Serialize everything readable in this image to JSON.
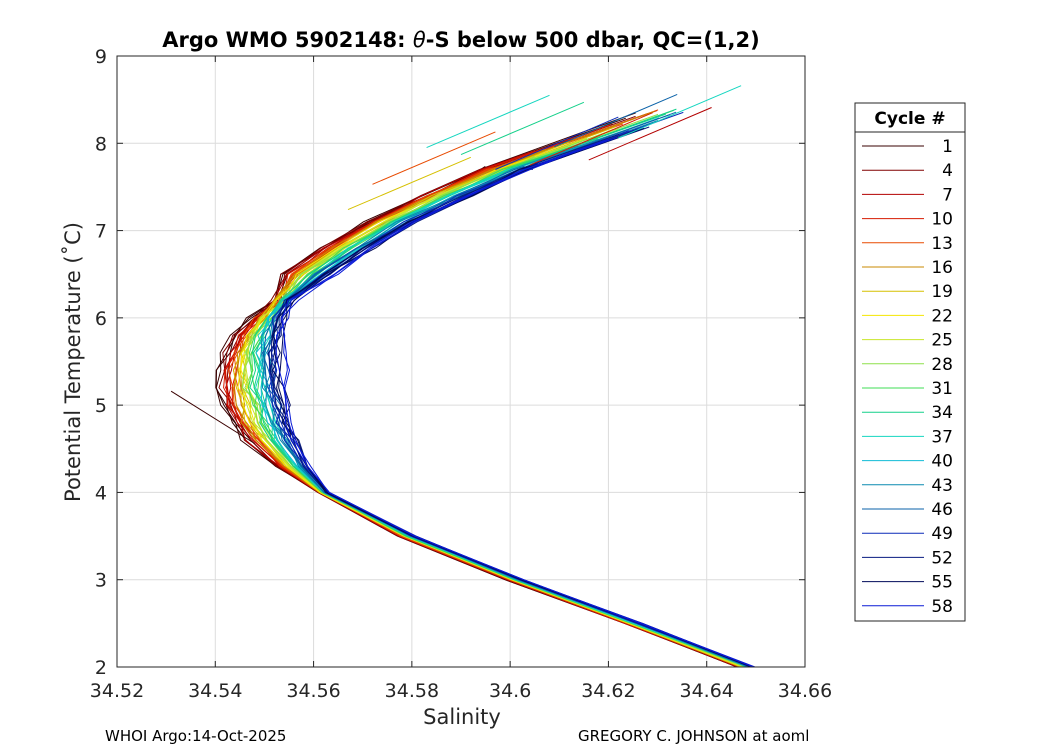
{
  "chart_data": {
    "type": "line",
    "title_parts": [
      "Argo WMO 5902148: ",
      "θ",
      "-S below 500 dbar,  QC=(1,2)"
    ],
    "xlabel": "Salinity",
    "ylabel": "Potential Temperature (˚C)",
    "xlim": [
      34.52,
      34.66
    ],
    "ylim": [
      2,
      9
    ],
    "x_ticks": [
      34.52,
      34.54,
      34.56,
      34.58,
      34.6,
      34.62,
      34.64,
      34.66
    ],
    "x_tick_labels": [
      "34.52",
      "34.54",
      "34.56",
      "34.58",
      "34.6",
      "34.62",
      "34.64",
      "34.66"
    ],
    "y_ticks": [
      2,
      3,
      4,
      5,
      6,
      7,
      8,
      9
    ],
    "y_tick_labels": [
      "2",
      "3",
      "4",
      "5",
      "6",
      "7",
      "8",
      "9"
    ],
    "grid": true,
    "legend_title": "Cycle #",
    "legend_position": "right-outside",
    "legend_entries": [
      {
        "label": "1",
        "color": "#3a0000"
      },
      {
        "label": "4",
        "color": "#800000"
      },
      {
        "label": "7",
        "color": "#b30000"
      },
      {
        "label": "10",
        "color": "#d61a00"
      },
      {
        "label": "13",
        "color": "#e84a00"
      },
      {
        "label": "16",
        "color": "#c98a00"
      },
      {
        "label": "19",
        "color": "#d6c000"
      },
      {
        "label": "22",
        "color": "#f5e600"
      },
      {
        "label": "25",
        "color": "#c8e62a"
      },
      {
        "label": "28",
        "color": "#8ee04a"
      },
      {
        "label": "31",
        "color": "#3fdc55"
      },
      {
        "label": "34",
        "color": "#14d08a"
      },
      {
        "label": "37",
        "color": "#14d6c0"
      },
      {
        "label": "40",
        "color": "#10bcd6"
      },
      {
        "label": "43",
        "color": "#0a8ab0"
      },
      {
        "label": "46",
        "color": "#0a62a8"
      },
      {
        "label": "49",
        "color": "#0a2ab8"
      },
      {
        "label": "52",
        "color": "#061a80"
      },
      {
        "label": "55",
        "color": "#000a5a"
      },
      {
        "label": "58",
        "color": "#0a1ad6"
      }
    ],
    "series_shape": {
      "theta": [
        2.0,
        2.5,
        3.0,
        3.5,
        4.0,
        4.3,
        4.6,
        4.8,
        5.0,
        5.2,
        5.4,
        5.6,
        5.8,
        6.0,
        6.2,
        6.5,
        6.8,
        7.1,
        7.4,
        7.7,
        8.0
      ],
      "salinity_reference": [
        34.648,
        34.625,
        34.601,
        34.579,
        34.563,
        34.557,
        34.553,
        34.551,
        34.55,
        34.549,
        34.549,
        34.549,
        34.55,
        34.552,
        34.555,
        34.561,
        34.569,
        34.578,
        34.589,
        34.601,
        34.616
      ]
    },
    "series_tops": [
      {
        "color": "#3a0000",
        "end": [
          34.531,
          5.16
        ]
      },
      {
        "color": "#b30000",
        "end": [
          34.641,
          8.41
        ]
      },
      {
        "color": "#d61a00",
        "end": [
          34.629,
          8.35
        ]
      },
      {
        "color": "#e84a00",
        "end": [
          34.597,
          8.13
        ]
      },
      {
        "color": "#d6c000",
        "end": [
          34.592,
          7.84
        ]
      },
      {
        "color": "#14d6c0",
        "end": [
          34.647,
          8.66
        ]
      },
      {
        "color": "#14d6c0",
        "end": [
          34.608,
          8.55
        ]
      },
      {
        "color": "#14d08a",
        "end": [
          34.615,
          8.47
        ]
      },
      {
        "color": "#0a62a8",
        "end": [
          34.634,
          8.56
        ]
      },
      {
        "color": "#0a2ab8",
        "end": [
          34.622,
          8.3
        ]
      }
    ]
  },
  "footer": {
    "left": "WHOI Argo:14-Oct-2025",
    "right": "GREGORY C. JOHNSON at aoml"
  }
}
